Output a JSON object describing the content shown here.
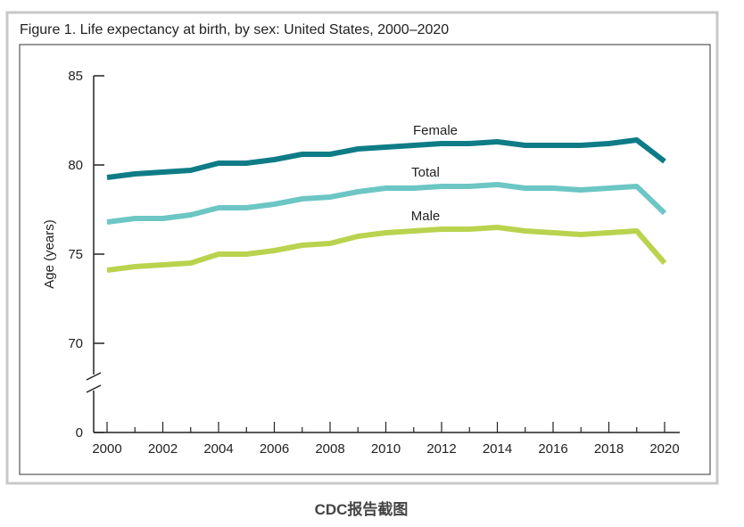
{
  "caption": "CDC报告截图",
  "chart_data": {
    "type": "line",
    "title": "Figure 1. Life expectancy at birth, by sex: United States, 2000–2020",
    "xlabel": "",
    "ylabel": "Age (years)",
    "x": [
      2000,
      2001,
      2002,
      2003,
      2004,
      2005,
      2006,
      2007,
      2008,
      2009,
      2010,
      2011,
      2012,
      2013,
      2014,
      2015,
      2016,
      2017,
      2018,
      2019,
      2020
    ],
    "xticks": [
      "2000",
      "2002",
      "2004",
      "2006",
      "2008",
      "2010",
      "2012",
      "2014",
      "2016",
      "2018",
      "2020"
    ],
    "yticks": [
      "0",
      "70",
      "75",
      "80",
      "85"
    ],
    "ylim": [
      0,
      85
    ],
    "axis_break": "between 0 and 70",
    "grid": false,
    "series": [
      {
        "name": "Female",
        "color": "#0e7c86",
        "values": [
          79.3,
          79.5,
          79.6,
          79.7,
          80.1,
          80.1,
          80.3,
          80.6,
          80.6,
          80.9,
          81.0,
          81.1,
          81.2,
          81.2,
          81.3,
          81.1,
          81.1,
          81.1,
          81.2,
          81.4,
          80.2
        ]
      },
      {
        "name": "Total",
        "color": "#6cc6c4",
        "values": [
          76.8,
          77.0,
          77.0,
          77.2,
          77.6,
          77.6,
          77.8,
          78.1,
          78.2,
          78.5,
          78.7,
          78.7,
          78.8,
          78.8,
          78.9,
          78.7,
          78.7,
          78.6,
          78.7,
          78.8,
          77.3
        ]
      },
      {
        "name": "Male",
        "color": "#b9d34e",
        "values": [
          74.1,
          74.3,
          74.4,
          74.5,
          75.0,
          75.0,
          75.2,
          75.5,
          75.6,
          76.0,
          76.2,
          76.3,
          76.4,
          76.4,
          76.5,
          76.3,
          76.2,
          76.1,
          76.2,
          76.3,
          74.5
        ]
      }
    ]
  }
}
